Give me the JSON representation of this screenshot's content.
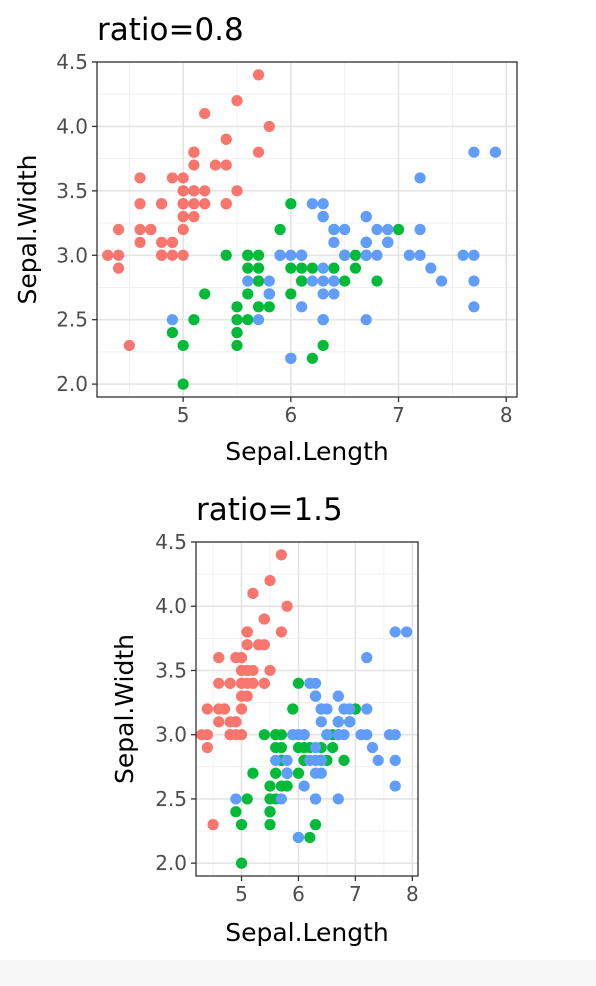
{
  "chart_data": [
    {
      "type": "scatter",
      "title": "ratio=0.8",
      "xlabel": "Sepal.Length",
      "ylabel": "Sepal.Width",
      "xlim": [
        4.2,
        8.1
      ],
      "ylim": [
        1.9,
        4.5
      ],
      "x_ticks": [
        5,
        6,
        7,
        8
      ],
      "y_ticks": [
        2.0,
        2.5,
        3.0,
        3.5,
        4.0,
        4.5
      ],
      "x_tick_labels": [
        "5",
        "6",
        "7",
        "8"
      ],
      "y_tick_labels": [
        "2.0",
        "2.5",
        "3.0",
        "3.5",
        "4.0",
        "4.5"
      ],
      "grid": true,
      "legend": "none",
      "series": [
        {
          "color": "#F8766D",
          "points": [
            [
              5.1,
              3.5
            ],
            [
              4.9,
              3.0
            ],
            [
              4.7,
              3.2
            ],
            [
              4.6,
              3.1
            ],
            [
              5.0,
              3.6
            ],
            [
              5.4,
              3.9
            ],
            [
              4.6,
              3.4
            ],
            [
              5.0,
              3.4
            ],
            [
              4.4,
              2.9
            ],
            [
              4.9,
              3.1
            ],
            [
              5.4,
              3.7
            ],
            [
              4.8,
              3.4
            ],
            [
              4.8,
              3.0
            ],
            [
              4.3,
              3.0
            ],
            [
              5.8,
              4.0
            ],
            [
              5.7,
              4.4
            ],
            [
              5.4,
              3.9
            ],
            [
              5.1,
              3.5
            ],
            [
              5.7,
              3.8
            ],
            [
              5.1,
              3.8
            ],
            [
              5.4,
              3.4
            ],
            [
              5.1,
              3.7
            ],
            [
              4.6,
              3.6
            ],
            [
              5.1,
              3.3
            ],
            [
              4.8,
              3.4
            ],
            [
              5.0,
              3.0
            ],
            [
              5.0,
              3.4
            ],
            [
              5.2,
              3.5
            ],
            [
              5.2,
              3.4
            ],
            [
              4.7,
              3.2
            ],
            [
              4.8,
              3.1
            ],
            [
              5.4,
              3.4
            ],
            [
              5.2,
              4.1
            ],
            [
              5.5,
              4.2
            ],
            [
              4.9,
              3.1
            ],
            [
              5.0,
              3.2
            ],
            [
              5.5,
              3.5
            ],
            [
              4.9,
              3.6
            ],
            [
              4.4,
              3.0
            ],
            [
              5.1,
              3.4
            ],
            [
              5.0,
              3.5
            ],
            [
              4.5,
              2.3
            ],
            [
              4.4,
              3.2
            ],
            [
              5.0,
              3.5
            ],
            [
              5.1,
              3.8
            ],
            [
              4.8,
              3.0
            ],
            [
              5.1,
              3.8
            ],
            [
              4.6,
              3.2
            ],
            [
              5.3,
              3.7
            ],
            [
              5.0,
              3.3
            ]
          ]
        },
        {
          "color": "#00BA38",
          "points": [
            [
              7.0,
              3.2
            ],
            [
              6.4,
              3.2
            ],
            [
              6.9,
              3.1
            ],
            [
              5.5,
              2.3
            ],
            [
              6.5,
              2.8
            ],
            [
              5.7,
              2.8
            ],
            [
              6.3,
              3.3
            ],
            [
              4.9,
              2.4
            ],
            [
              6.6,
              2.9
            ],
            [
              5.2,
              2.7
            ],
            [
              5.0,
              2.0
            ],
            [
              5.9,
              3.0
            ],
            [
              6.0,
              2.2
            ],
            [
              6.1,
              2.9
            ],
            [
              5.6,
              2.9
            ],
            [
              6.7,
              3.1
            ],
            [
              5.6,
              3.0
            ],
            [
              5.8,
              2.7
            ],
            [
              6.2,
              2.2
            ],
            [
              5.6,
              2.5
            ],
            [
              5.9,
              3.2
            ],
            [
              6.1,
              2.8
            ],
            [
              6.3,
              2.5
            ],
            [
              6.1,
              2.8
            ],
            [
              6.4,
              2.9
            ],
            [
              6.6,
              3.0
            ],
            [
              6.8,
              2.8
            ],
            [
              6.7,
              3.0
            ],
            [
              6.0,
              2.9
            ],
            [
              5.7,
              2.6
            ],
            [
              5.5,
              2.4
            ],
            [
              5.5,
              2.4
            ],
            [
              5.8,
              2.7
            ],
            [
              6.0,
              2.7
            ],
            [
              5.4,
              3.0
            ],
            [
              6.0,
              3.4
            ],
            [
              6.7,
              3.1
            ],
            [
              6.3,
              2.3
            ],
            [
              5.6,
              3.0
            ],
            [
              5.5,
              2.5
            ],
            [
              5.5,
              2.6
            ],
            [
              6.1,
              3.0
            ],
            [
              5.8,
              2.6
            ],
            [
              5.0,
              2.3
            ],
            [
              5.6,
              2.7
            ],
            [
              5.7,
              3.0
            ],
            [
              5.7,
              2.9
            ],
            [
              6.2,
              2.9
            ],
            [
              5.1,
              2.5
            ],
            [
              5.7,
              2.8
            ]
          ]
        },
        {
          "color": "#619CFF",
          "points": [
            [
              6.3,
              3.3
            ],
            [
              5.8,
              2.7
            ],
            [
              7.1,
              3.0
            ],
            [
              6.3,
              2.9
            ],
            [
              6.5,
              3.0
            ],
            [
              7.6,
              3.0
            ],
            [
              4.9,
              2.5
            ],
            [
              7.3,
              2.9
            ],
            [
              6.7,
              2.5
            ],
            [
              7.2,
              3.6
            ],
            [
              6.5,
              3.2
            ],
            [
              6.4,
              2.7
            ],
            [
              6.8,
              3.0
            ],
            [
              5.7,
              2.5
            ],
            [
              5.8,
              2.8
            ],
            [
              6.4,
              3.2
            ],
            [
              6.5,
              3.0
            ],
            [
              7.7,
              3.8
            ],
            [
              7.7,
              2.6
            ],
            [
              6.0,
              2.2
            ],
            [
              6.9,
              3.2
            ],
            [
              5.6,
              2.8
            ],
            [
              7.7,
              2.8
            ],
            [
              6.3,
              2.7
            ],
            [
              6.7,
              3.3
            ],
            [
              7.2,
              3.2
            ],
            [
              6.2,
              2.8
            ],
            [
              6.1,
              3.0
            ],
            [
              6.4,
              2.8
            ],
            [
              7.2,
              3.0
            ],
            [
              7.4,
              2.8
            ],
            [
              7.9,
              3.8
            ],
            [
              6.4,
              2.8
            ],
            [
              6.3,
              2.8
            ],
            [
              6.1,
              2.6
            ],
            [
              7.7,
              3.0
            ],
            [
              6.3,
              3.4
            ],
            [
              6.4,
              3.1
            ],
            [
              6.0,
              3.0
            ],
            [
              6.9,
              3.1
            ],
            [
              6.7,
              3.1
            ],
            [
              6.9,
              3.1
            ],
            [
              5.8,
              2.7
            ],
            [
              6.8,
              3.2
            ],
            [
              6.7,
              3.3
            ],
            [
              6.7,
              3.0
            ],
            [
              6.3,
              2.5
            ],
            [
              6.5,
              3.0
            ],
            [
              6.2,
              3.4
            ],
            [
              5.9,
              3.0
            ]
          ]
        }
      ]
    },
    {
      "type": "scatter",
      "title": "ratio=1.5",
      "xlabel": "Sepal.Length",
      "ylabel": "Sepal.Width",
      "xlim": [
        4.2,
        8.1
      ],
      "ylim": [
        1.9,
        4.5
      ],
      "x_ticks": [
        5,
        6,
        7,
        8
      ],
      "y_ticks": [
        2.0,
        2.5,
        3.0,
        3.5,
        4.0,
        4.5
      ],
      "x_tick_labels": [
        "5",
        "6",
        "7",
        "8"
      ],
      "y_tick_labels": [
        "2.0",
        "2.5",
        "3.0",
        "3.5",
        "4.0",
        "4.5"
      ],
      "grid": true,
      "legend": "none",
      "same_data_as": 0
    }
  ]
}
